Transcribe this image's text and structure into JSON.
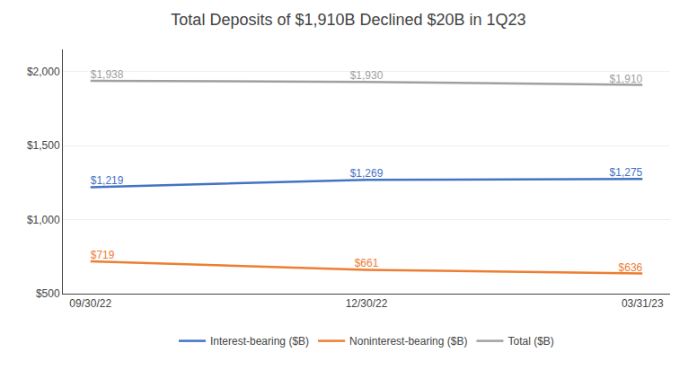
{
  "chart_data": {
    "type": "line",
    "title": "Total Deposits of $1,910B Declined $20B in 1Q23",
    "categories": [
      "09/30/22",
      "12/30/22",
      "03/31/23"
    ],
    "series": [
      {
        "name": "Interest-bearing ($B)",
        "color": "#4472C4",
        "values": [
          1219,
          1269,
          1275
        ],
        "value_labels": [
          "$1,219",
          "$1,269",
          "$1,275"
        ]
      },
      {
        "name": "Noninterest-bearing ($B)",
        "color": "#ED7D31",
        "values": [
          719,
          661,
          636
        ],
        "value_labels": [
          "$719",
          "$661",
          "$636"
        ]
      },
      {
        "name": "Total ($B)",
        "color": "#A0A0A0",
        "values": [
          1938,
          1930,
          1910
        ],
        "value_labels": [
          "$1,938",
          "$1,930",
          "$1,910"
        ]
      }
    ],
    "ylim": [
      500,
      2150
    ],
    "yticks": [
      {
        "value": 500,
        "label": "$500"
      },
      {
        "value": 1000,
        "label": "$1,000"
      },
      {
        "value": 1500,
        "label": "$1,500"
      },
      {
        "value": 2000,
        "label": "$2,000"
      }
    ],
    "grid": true,
    "legend": "bottom",
    "data_labels": true
  }
}
